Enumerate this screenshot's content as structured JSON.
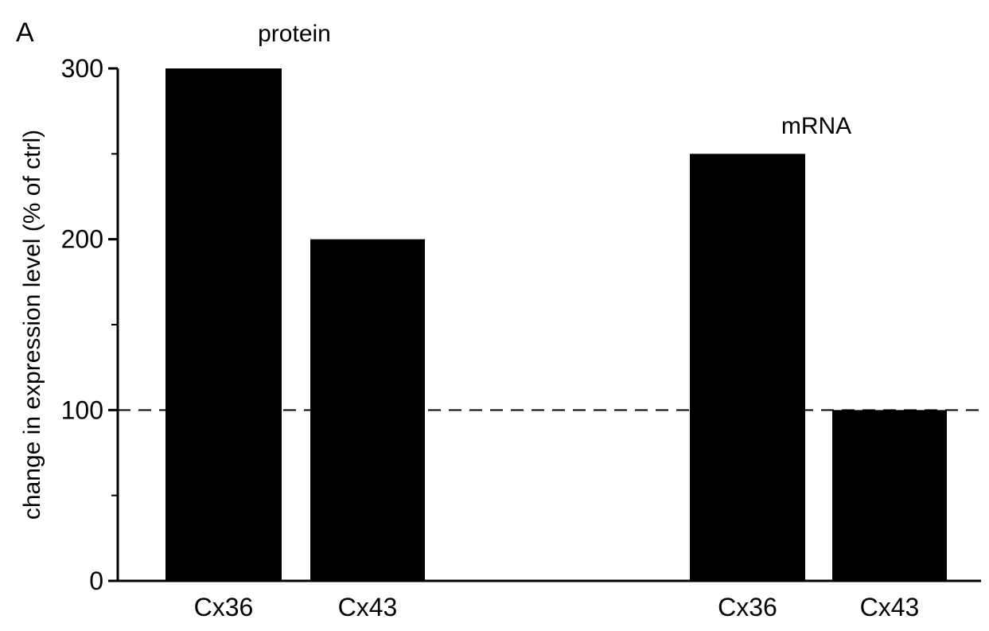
{
  "chart_data": {
    "type": "bar",
    "panel_label": "A",
    "ylabel": "change in expression level (% of ctrl)",
    "ylim": [
      0,
      300
    ],
    "yticks": [
      0,
      100,
      200,
      300
    ],
    "yticks_labeled": [
      "0",
      "100",
      "200",
      "300"
    ],
    "yticks_minor": [
      50,
      150,
      250
    ],
    "reference_line": {
      "y": 100,
      "style": "dashed"
    },
    "grid": false,
    "legend": "none",
    "bar_color": "#000000",
    "groups": [
      {
        "name": "protein",
        "categories": [
          "Cx36",
          "Cx43"
        ],
        "values": [
          300,
          200
        ]
      },
      {
        "name": "mRNA",
        "categories": [
          "Cx36",
          "Cx43"
        ],
        "values": [
          250,
          100
        ]
      }
    ]
  }
}
